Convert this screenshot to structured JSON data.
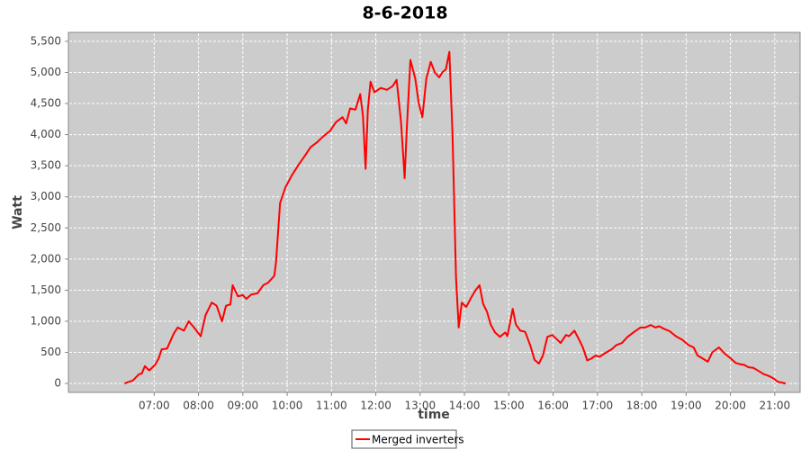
{
  "chart_data": {
    "type": "line",
    "title": "8-6-2018",
    "x_label": "time",
    "y_label": "Watt",
    "x": [
      6.33,
      6.52,
      6.66,
      6.72,
      6.79,
      6.89,
      7.02,
      7.1,
      7.17,
      7.29,
      7.44,
      7.53,
      7.67,
      7.78,
      7.9,
      8.05,
      8.16,
      8.3,
      8.41,
      8.53,
      8.62,
      8.72,
      8.77,
      8.89,
      9.0,
      9.08,
      9.19,
      9.33,
      9.46,
      9.57,
      9.71,
      9.75,
      9.84,
      9.96,
      10.11,
      10.26,
      10.39,
      10.53,
      10.68,
      10.81,
      10.97,
      11.1,
      11.25,
      11.33,
      11.42,
      11.54,
      11.65,
      11.71,
      11.77,
      11.82,
      11.88,
      11.97,
      12.11,
      12.25,
      12.38,
      12.47,
      12.57,
      12.65,
      12.7,
      12.78,
      12.89,
      12.97,
      13.05,
      13.14,
      13.24,
      13.33,
      13.43,
      13.5,
      13.58,
      13.66,
      13.73,
      13.81,
      13.87,
      13.94,
      14.04,
      14.15,
      14.25,
      14.34,
      14.42,
      14.51,
      14.59,
      14.69,
      14.8,
      14.92,
      14.97,
      15.09,
      15.16,
      15.26,
      15.37,
      15.49,
      15.58,
      15.68,
      15.77,
      15.87,
      15.98,
      16.1,
      16.17,
      16.29,
      16.36,
      16.48,
      16.59,
      16.67,
      16.77,
      16.86,
      16.96,
      17.05,
      17.2,
      17.32,
      17.43,
      17.55,
      17.68,
      17.81,
      17.97,
      18.08,
      18.2,
      18.31,
      18.39,
      18.5,
      18.63,
      18.77,
      18.92,
      19.05,
      19.17,
      19.26,
      19.38,
      19.49,
      19.59,
      19.74,
      19.87,
      20.01,
      20.12,
      20.22,
      20.31,
      20.41,
      20.52,
      20.64,
      20.75,
      20.87,
      20.98,
      21.06,
      21.25
    ],
    "series": [
      {
        "name": "Merged inverters",
        "color": "#ff0000",
        "values": [
          0,
          50,
          150,
          160,
          280,
          210,
          300,
          400,
          550,
          560,
          800,
          900,
          850,
          1000,
          900,
          760,
          1100,
          1300,
          1250,
          1000,
          1250,
          1270,
          1580,
          1400,
          1420,
          1360,
          1430,
          1450,
          1580,
          1620,
          1730,
          1950,
          2900,
          3150,
          3350,
          3520,
          3650,
          3800,
          3880,
          3970,
          4060,
          4200,
          4280,
          4180,
          4420,
          4400,
          4650,
          4300,
          3450,
          4400,
          4850,
          4680,
          4750,
          4720,
          4780,
          4880,
          4200,
          3300,
          4100,
          5200,
          4900,
          4500,
          4280,
          4900,
          5170,
          5000,
          4920,
          5000,
          5050,
          5330,
          4000,
          1700,
          900,
          1300,
          1230,
          1380,
          1500,
          1580,
          1280,
          1150,
          950,
          820,
          750,
          820,
          760,
          1200,
          950,
          850,
          830,
          600,
          380,
          320,
          450,
          750,
          780,
          700,
          650,
          780,
          760,
          850,
          700,
          580,
          370,
          400,
          450,
          430,
          500,
          550,
          620,
          650,
          750,
          820,
          900,
          900,
          940,
          900,
          920,
          880,
          840,
          760,
          700,
          620,
          580,
          450,
          400,
          350,
          500,
          580,
          480,
          400,
          330,
          310,
          300,
          260,
          250,
          200,
          150,
          120,
          80,
          30,
          0
        ]
      }
    ],
    "xlim": [
      5.065,
      21.572
    ],
    "xticks": [
      {
        "value": 7,
        "label": "07:00"
      },
      {
        "value": 8,
        "label": "08:00"
      },
      {
        "value": 9,
        "label": "09:00"
      },
      {
        "value": 10,
        "label": "10:00"
      },
      {
        "value": 11,
        "label": "11:00"
      },
      {
        "value": 12,
        "label": "12:00"
      },
      {
        "value": 13,
        "label": "13:00"
      },
      {
        "value": 14,
        "label": "14:00"
      },
      {
        "value": 15,
        "label": "15:00"
      },
      {
        "value": 16,
        "label": "16:00"
      },
      {
        "value": 17,
        "label": "17:00"
      },
      {
        "value": 18,
        "label": "18:00"
      },
      {
        "value": 19,
        "label": "19:00"
      },
      {
        "value": 20,
        "label": "20:00"
      },
      {
        "value": 21,
        "label": "21:00"
      }
    ],
    "ylim": [
      -143,
      5643
    ],
    "yticks": [
      0,
      500,
      {
        "value": 1000,
        "label": "1,000"
      },
      {
        "value": 1500,
        "label": "1,500"
      },
      {
        "value": 2000,
        "label": "2,000"
      },
      {
        "value": 2500,
        "label": "2,500"
      },
      {
        "value": 3000,
        "label": "3,000"
      },
      {
        "value": 3500,
        "label": "3,500"
      },
      {
        "value": 4000,
        "label": "4,000"
      },
      {
        "value": 4500,
        "label": "4,500"
      },
      {
        "value": 5000,
        "label": "5,000"
      },
      {
        "value": 5500,
        "label": "5,500"
      }
    ],
    "grid": true,
    "legend": "bottom"
  }
}
